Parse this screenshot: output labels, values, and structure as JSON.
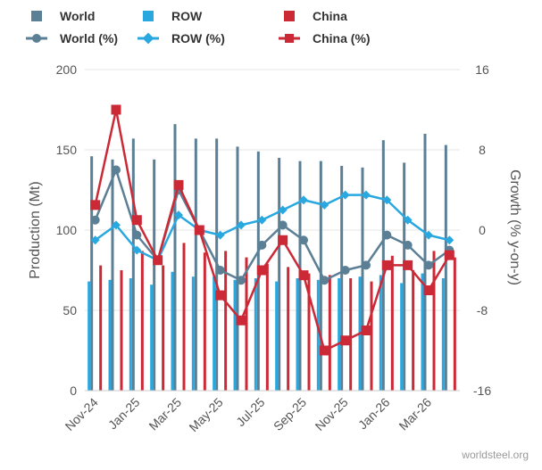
{
  "chart_data": {
    "type": "bar",
    "categories": [
      "Nov-24",
      "Dec-24",
      "Jan-25",
      "Feb-25",
      "Mar-25",
      "Apr-25",
      "May-25",
      "Jun-25",
      "Jul-25",
      "Aug-25",
      "Sep-25",
      "Oct-25",
      "Nov-25",
      "Dec-25",
      "Jan-26",
      "Feb-26",
      "Mar-26",
      "Apr-26"
    ],
    "x_tick_labels": [
      "Nov-24",
      "Jan-25",
      "Mar-25",
      "May-25",
      "Jul-25",
      "Sep-25",
      "Nov-25",
      "Jan-26",
      "Mar-26"
    ],
    "ylabel": "Production (Mt)",
    "y2label": "Growth (% y-on-y)",
    "ylim": [
      0,
      200
    ],
    "y2lim": [
      -16,
      16
    ],
    "y_ticks": [
      "0",
      "50",
      "100",
      "150",
      "200"
    ],
    "y2_ticks": [
      "-16",
      "-8",
      "0",
      "8",
      "16"
    ],
    "legend_placement": "top",
    "bar_series": [
      {
        "name": "World",
        "color": "#5b7f95",
        "values": [
          146,
          144,
          157,
          144,
          166,
          157,
          157,
          152,
          149,
          145,
          143,
          143,
          140,
          139,
          156,
          142,
          160,
          153
        ]
      },
      {
        "name": "ROW",
        "color": "#29a8e0",
        "values": [
          68,
          69,
          70,
          66,
          74,
          71,
          71,
          69,
          70,
          68,
          70,
          69,
          70,
          71,
          72,
          67,
          73,
          70
        ]
      },
      {
        "name": "China",
        "color": "#cc2936",
        "values": [
          78,
          75,
          87,
          78,
          92,
          86,
          87,
          83,
          79,
          77,
          73,
          72,
          70,
          68,
          84,
          75,
          87,
          83
        ]
      }
    ],
    "line_series": [
      {
        "name": "World (%)",
        "color": "#5b7f95",
        "values": [
          1,
          6,
          -0.5,
          -3,
          4,
          0,
          -4,
          -5,
          -1.5,
          0.5,
          -1,
          -5,
          -4,
          -3.5,
          -0.5,
          -1.5,
          -3.5,
          -2
        ]
      },
      {
        "name": "ROW (%)",
        "color": "#29a8e0",
        "values": [
          -1,
          0.5,
          -2,
          -3,
          1.5,
          0,
          -0.5,
          0.5,
          1,
          2,
          3,
          2.5,
          3.5,
          3.5,
          3,
          1,
          -0.5,
          -1
        ]
      },
      {
        "name": "China (%)",
        "color": "#cc2936",
        "values": [
          2.5,
          12,
          1,
          -3,
          4.5,
          0,
          -6.5,
          -9,
          -4,
          -1,
          -4.5,
          -12,
          -11,
          -10,
          -3.5,
          -3.5,
          -6,
          -2.5
        ]
      }
    ],
    "grid": true
  },
  "watermark": "worldsteel.org"
}
